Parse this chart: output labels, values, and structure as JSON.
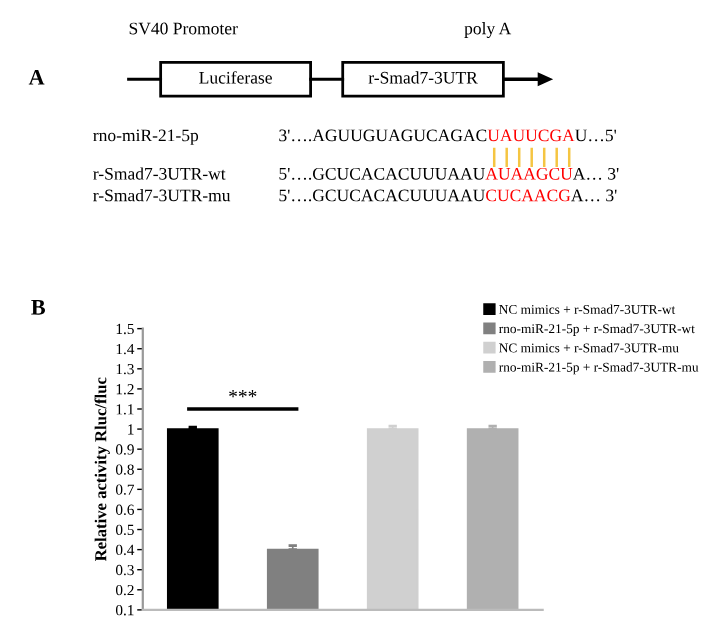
{
  "chart_data": [
    {
      "type": "other",
      "title": "A",
      "annotations": [
        "SV40 Promoter",
        "poly A",
        "Luciferase",
        "r-Smad7-3UTR",
        "rno-miR-21-5p",
        "3'….AGUUGUAGUCAGAC",
        "UAUUCGA",
        "U…5'",
        "r-Smad7-3UTR-wt",
        "5'….GCUCACACUUUAAU",
        "AUAAGCU",
        "A… 3'",
        "r-Smad7-3UTR-mu",
        "5'….GCUCACACUUUAAU",
        "CUCAACG",
        "A… 3'"
      ]
    },
    {
      "type": "bar",
      "title": "B",
      "ylabel": "Relative activity Rluc/fluc",
      "categories": [
        null,
        null,
        null,
        null
      ],
      "stacked": true,
      "series": [
        {
          "name": "NC mimics + r-Smad7-3UTR-wt",
          "color": "#000000",
          "values": [
            1.0,
            null,
            null,
            null
          ],
          "errors": [
            0.01,
            null,
            null,
            null
          ]
        },
        {
          "name": "rno-miR-21-5p + r-Smad7-3UTR-wt",
          "color": "#808080",
          "values": [
            null,
            0.4,
            null,
            null
          ],
          "errors": [
            null,
            0.02,
            null,
            null
          ]
        },
        {
          "name": "NC mimics + r-Smad7-3UTR-mu",
          "color": "#d0d0d0",
          "values": [
            null,
            null,
            1.0,
            null
          ],
          "errors": [
            null,
            null,
            0.015,
            null
          ]
        },
        {
          "name": "rno-miR-21-5p + r-Smad7-3UTR-mu",
          "color": "#b0b0b0",
          "values": [
            null,
            null,
            null,
            1.0
          ],
          "errors": [
            null,
            null,
            null,
            0.015
          ]
        }
      ],
      "ylim": [
        0.1,
        1.5
      ],
      "yticks": [
        0.1,
        0.2,
        0.3,
        0.4,
        0.5,
        0.6,
        0.7,
        0.8,
        0.9,
        1,
        1.1,
        1.2,
        1.3,
        1.4,
        1.5
      ],
      "annotations": [
        "***"
      ],
      "legend": "top right",
      "grid": false
    }
  ]
}
